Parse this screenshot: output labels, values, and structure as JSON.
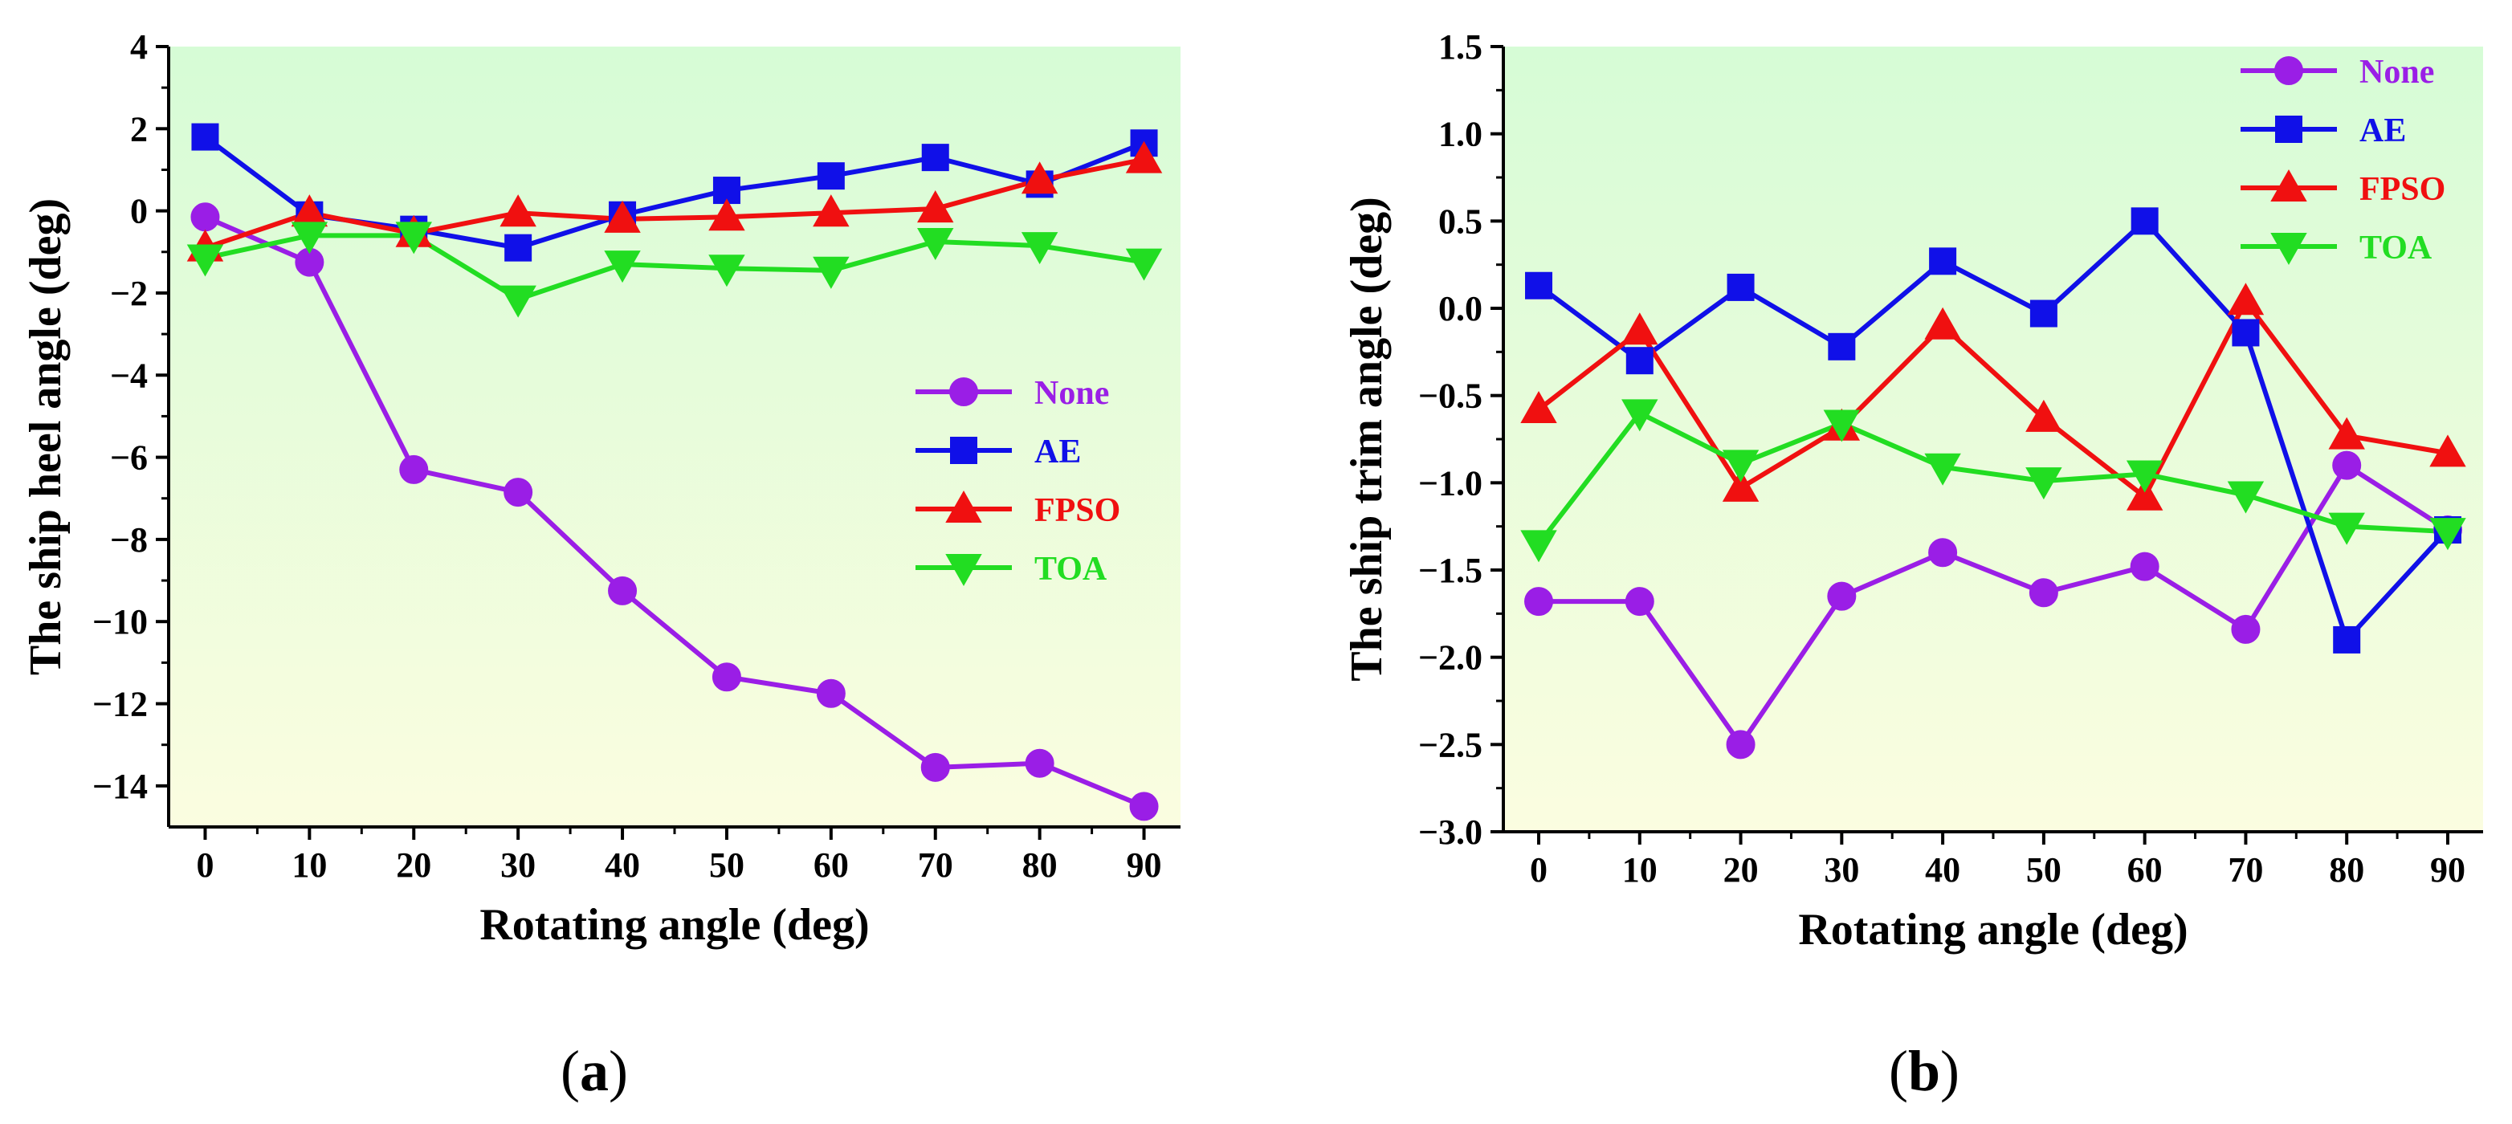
{
  "chart_data": [
    {
      "type": "line",
      "panel_label": "a",
      "xlabel": "Rotating angle (deg)",
      "ylabel": "The ship heel angle (deg)",
      "xlim": [
        -3.5,
        93.5
      ],
      "ylim": [
        -15,
        4
      ],
      "xticks": [
        0,
        10,
        20,
        30,
        40,
        50,
        60,
        70,
        80,
        90
      ],
      "yticks": [
        -14,
        -12,
        -10,
        -8,
        -6,
        -4,
        -2,
        0,
        2,
        4
      ],
      "ytick_labels": [
        "−14",
        "−12",
        "−10",
        "−8",
        "−6",
        "−4",
        "−2",
        "0",
        "2",
        "4"
      ],
      "x": [
        0,
        10,
        20,
        30,
        40,
        50,
        60,
        70,
        80,
        90
      ],
      "legend_position": "center-right",
      "series": [
        {
          "name": "None",
          "color": "#9a1ee6",
          "marker": "circle",
          "values": [
            -0.15,
            -1.25,
            -6.3,
            -6.85,
            -9.25,
            -11.35,
            -11.75,
            -13.55,
            -13.45,
            -14.5
          ]
        },
        {
          "name": "AE",
          "color": "#1010e8",
          "marker": "square",
          "values": [
            1.8,
            -0.1,
            -0.45,
            -0.9,
            -0.1,
            0.5,
            0.85,
            1.3,
            0.65,
            1.65
          ]
        },
        {
          "name": "FPSO",
          "color": "#f01010",
          "marker": "triangle-up",
          "values": [
            -0.9,
            -0.05,
            -0.55,
            -0.05,
            -0.2,
            -0.15,
            -0.05,
            0.05,
            0.75,
            1.25
          ]
        },
        {
          "name": "TOA",
          "color": "#22dd22",
          "marker": "triangle-down",
          "values": [
            -1.15,
            -0.6,
            -0.6,
            -2.15,
            -1.3,
            -1.4,
            -1.45,
            -0.75,
            -0.85,
            -1.25
          ]
        }
      ]
    },
    {
      "type": "line",
      "panel_label": "b",
      "xlabel": "Rotating angle (deg)",
      "ylabel": "The ship trim angle (deg)",
      "xlim": [
        -3.5,
        93.5
      ],
      "ylim": [
        -3.0,
        1.5
      ],
      "xticks": [
        0,
        10,
        20,
        30,
        40,
        50,
        60,
        70,
        80,
        90
      ],
      "yticks": [
        -3.0,
        -2.5,
        -2.0,
        -1.5,
        -1.0,
        -0.5,
        0.0,
        0.5,
        1.0,
        1.5
      ],
      "ytick_labels": [
        "−3.0",
        "−2.5",
        "−2.0",
        "−1.5",
        "−1.0",
        "−0.5",
        "0.0",
        "0.5",
        "1.0",
        "1.5"
      ],
      "x": [
        0,
        10,
        20,
        30,
        40,
        50,
        60,
        70,
        80,
        90
      ],
      "legend_position": "top-right",
      "series": [
        {
          "name": "None",
          "color": "#9a1ee6",
          "marker": "circle",
          "values": [
            -1.68,
            -1.68,
            -2.5,
            -1.65,
            -1.4,
            -1.63,
            -1.48,
            -1.84,
            -0.9,
            -1.27
          ]
        },
        {
          "name": "AE",
          "color": "#1010e8",
          "marker": "square",
          "values": [
            0.13,
            -0.3,
            0.12,
            -0.22,
            0.27,
            -0.03,
            0.5,
            -0.14,
            -1.9,
            -1.27
          ]
        },
        {
          "name": "FPSO",
          "color": "#f01010",
          "marker": "triangle-up",
          "values": [
            -0.58,
            -0.13,
            -1.03,
            -0.68,
            -0.1,
            -0.63,
            -1.08,
            0.04,
            -0.73,
            -0.83
          ]
        },
        {
          "name": "TOA",
          "color": "#22dd22",
          "marker": "triangle-down",
          "values": [
            -1.35,
            -0.6,
            -0.89,
            -0.66,
            -0.91,
            -0.99,
            -0.95,
            -1.07,
            -1.25,
            -1.28
          ]
        }
      ]
    }
  ]
}
